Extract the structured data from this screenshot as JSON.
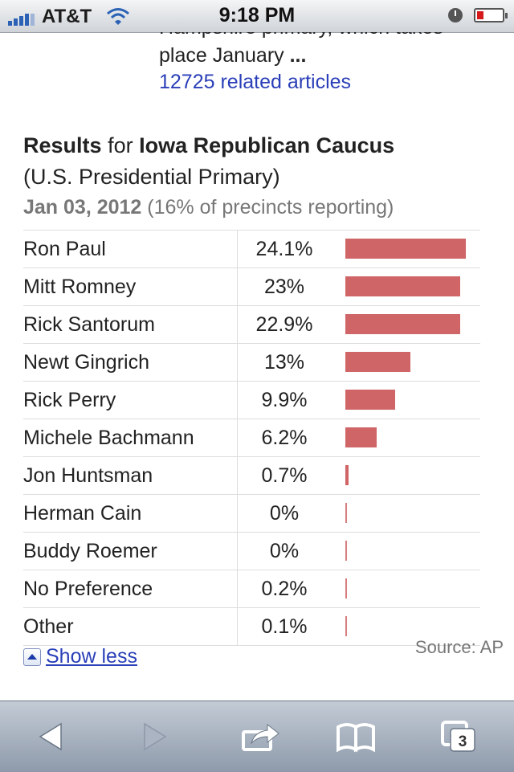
{
  "status_bar": {
    "carrier": "AT&T",
    "time": "9:18 PM"
  },
  "article": {
    "truncated_line": "Hampshire primary, which takes",
    "snippet_prefix": "place January",
    "snippet_ellipsis": "...",
    "related_link": "12725 related articles"
  },
  "results": {
    "title_prefix": "Results",
    "title_for": "for",
    "title_event": "Iowa Republican Caucus",
    "subtitle": "(U.S. Presidential Primary)",
    "date": "Jan 03, 2012",
    "reporting": "(16% of precincts reporting)",
    "accent_color": "#cf6566",
    "candidates": [
      {
        "name": "Ron Paul",
        "pct_label": "24.1%",
        "pct": 24.1
      },
      {
        "name": "Mitt Romney",
        "pct_label": "23%",
        "pct": 23
      },
      {
        "name": "Rick Santorum",
        "pct_label": "22.9%",
        "pct": 22.9
      },
      {
        "name": "Newt Gingrich",
        "pct_label": "13%",
        "pct": 13
      },
      {
        "name": "Rick Perry",
        "pct_label": "9.9%",
        "pct": 9.9
      },
      {
        "name": "Michele Bachmann",
        "pct_label": "6.2%",
        "pct": 6.2
      },
      {
        "name": "Jon Huntsman",
        "pct_label": "0.7%",
        "pct": 0.7
      },
      {
        "name": "Herman Cain",
        "pct_label": "0%",
        "pct": 0
      },
      {
        "name": "Buddy Roemer",
        "pct_label": "0%",
        "pct": 0
      },
      {
        "name": "No Preference",
        "pct_label": "0.2%",
        "pct": 0.2
      },
      {
        "name": "Other",
        "pct_label": "0.1%",
        "pct": 0.1
      }
    ],
    "show_less_label": "Show less",
    "source": "Source: AP"
  },
  "toolbar": {
    "tabs_count": "3",
    "icons": [
      "back-icon",
      "forward-icon",
      "share-icon",
      "bookmarks-icon",
      "tabs-icon"
    ]
  }
}
